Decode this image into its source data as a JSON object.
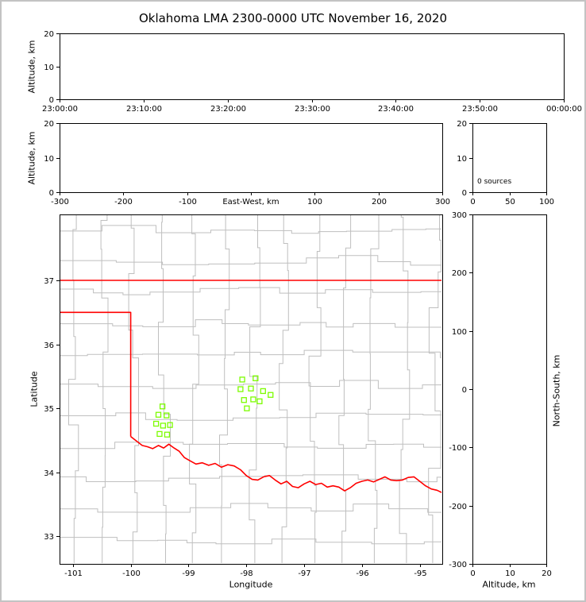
{
  "title": "Oklahoma LMA 2300-0000 UTC November 16, 2020",
  "colors": {
    "axis": "#000000",
    "county_lines": "#bfbfbf",
    "state_border": "#ff0000",
    "source_marker": "#7cfc00",
    "frame": "#c3c3c3",
    "background": "#ffffff"
  },
  "chart_data": [
    {
      "id": "time-altitude",
      "type": "scatter",
      "xlabel": "",
      "ylabel": "Altitude, km",
      "xtick_labels": [
        "23:00:00",
        "23:10:00",
        "23:20:00",
        "23:30:00",
        "23:40:00",
        "23:50:00",
        "00:00:00"
      ],
      "ylim": [
        0,
        20
      ],
      "yticks": [
        0,
        10,
        20
      ],
      "points": []
    },
    {
      "id": "ew-altitude",
      "type": "scatter",
      "xlabel": "East-West, km",
      "ylabel": "Altitude, km",
      "xlim": [
        -300,
        300
      ],
      "xticks": [
        -300,
        -200,
        -100,
        0,
        100,
        200,
        300
      ],
      "ylim": [
        0,
        20
      ],
      "yticks": [
        0,
        10,
        20
      ],
      "points": []
    },
    {
      "id": "altitude-histogram",
      "type": "line",
      "annotation": "0 sources",
      "xlim": [
        0,
        100
      ],
      "xticks": [
        0,
        50,
        100
      ],
      "ylim": [
        0,
        20
      ],
      "yticks": [
        0,
        10,
        20
      ],
      "points": []
    },
    {
      "id": "plan-view",
      "type": "scatter",
      "xlabel": "Longitude",
      "ylabel": "Latitude",
      "xlim": [
        -101.23,
        -94.61
      ],
      "ylim": [
        32.57,
        38.03
      ],
      "xticks": [
        -101,
        -100,
        -99,
        -98,
        -97,
        -96,
        -95
      ],
      "yticks": [
        33,
        34,
        35,
        36,
        37
      ],
      "sources_lonlat": [
        [
          -99.45,
          35.03
        ],
        [
          -99.52,
          34.9
        ],
        [
          -99.38,
          34.89
        ],
        [
          -99.56,
          34.76
        ],
        [
          -99.44,
          34.73
        ],
        [
          -99.32,
          34.74
        ],
        [
          -99.5,
          34.6
        ],
        [
          -99.37,
          34.59
        ],
        [
          -98.07,
          35.45
        ],
        [
          -97.84,
          35.47
        ],
        [
          -98.1,
          35.3
        ],
        [
          -97.92,
          35.31
        ],
        [
          -97.71,
          35.27
        ],
        [
          -97.58,
          35.21
        ],
        [
          -98.04,
          35.13
        ],
        [
          -97.88,
          35.14
        ],
        [
          -97.77,
          35.11
        ],
        [
          -97.99,
          35.0
        ]
      ],
      "state_border_lonlat": {
        "kansas_line": [
          [
            -101.23,
            37.0
          ],
          [
            -94.61,
            37.0
          ]
        ],
        "west_border": [
          [
            -101.23,
            36.5
          ],
          [
            -100.0,
            36.5
          ],
          [
            -100.0,
            34.56
          ]
        ],
        "red_river": [
          [
            -100.0,
            34.56
          ],
          [
            -99.9,
            34.49
          ],
          [
            -99.8,
            34.42
          ],
          [
            -99.71,
            34.4
          ],
          [
            -99.62,
            34.37
          ],
          [
            -99.52,
            34.42
          ],
          [
            -99.43,
            34.38
          ],
          [
            -99.34,
            34.44
          ],
          [
            -99.25,
            34.38
          ],
          [
            -99.16,
            34.33
          ],
          [
            -99.07,
            34.23
          ],
          [
            -98.97,
            34.18
          ],
          [
            -98.87,
            34.13
          ],
          [
            -98.76,
            34.15
          ],
          [
            -98.65,
            34.11
          ],
          [
            -98.54,
            34.14
          ],
          [
            -98.43,
            34.08
          ],
          [
            -98.32,
            34.12
          ],
          [
            -98.21,
            34.1
          ],
          [
            -98.1,
            34.04
          ],
          [
            -98.0,
            33.95
          ],
          [
            -97.9,
            33.89
          ],
          [
            -97.8,
            33.88
          ],
          [
            -97.7,
            33.93
          ],
          [
            -97.6,
            33.95
          ],
          [
            -97.5,
            33.88
          ],
          [
            -97.4,
            33.82
          ],
          [
            -97.3,
            33.86
          ],
          [
            -97.2,
            33.78
          ],
          [
            -97.1,
            33.76
          ],
          [
            -97.0,
            33.82
          ],
          [
            -96.9,
            33.86
          ],
          [
            -96.8,
            33.81
          ],
          [
            -96.7,
            33.83
          ],
          [
            -96.6,
            33.77
          ],
          [
            -96.5,
            33.79
          ],
          [
            -96.4,
            33.77
          ],
          [
            -96.3,
            33.71
          ],
          [
            -96.2,
            33.76
          ],
          [
            -96.1,
            33.83
          ],
          [
            -96.0,
            33.86
          ],
          [
            -95.9,
            33.88
          ],
          [
            -95.8,
            33.85
          ],
          [
            -95.7,
            33.89
          ],
          [
            -95.6,
            33.93
          ],
          [
            -95.5,
            33.88
          ],
          [
            -95.4,
            33.87
          ],
          [
            -95.3,
            33.88
          ],
          [
            -95.2,
            33.92
          ],
          [
            -95.1,
            33.93
          ],
          [
            -95.0,
            33.86
          ],
          [
            -94.9,
            33.79
          ],
          [
            -94.8,
            33.74
          ],
          [
            -94.7,
            33.72
          ],
          [
            -94.61,
            33.68
          ]
        ]
      }
    },
    {
      "id": "ns-altitude",
      "type": "scatter",
      "xlabel": "Altitude, km",
      "ylabel": "North-South, km",
      "xlim": [
        0,
        20
      ],
      "xticks": [
        0,
        10,
        20
      ],
      "ylim": [
        -300,
        300
      ],
      "yticks": [
        300,
        200,
        100,
        0,
        -100,
        -200,
        -300
      ],
      "points": []
    }
  ]
}
